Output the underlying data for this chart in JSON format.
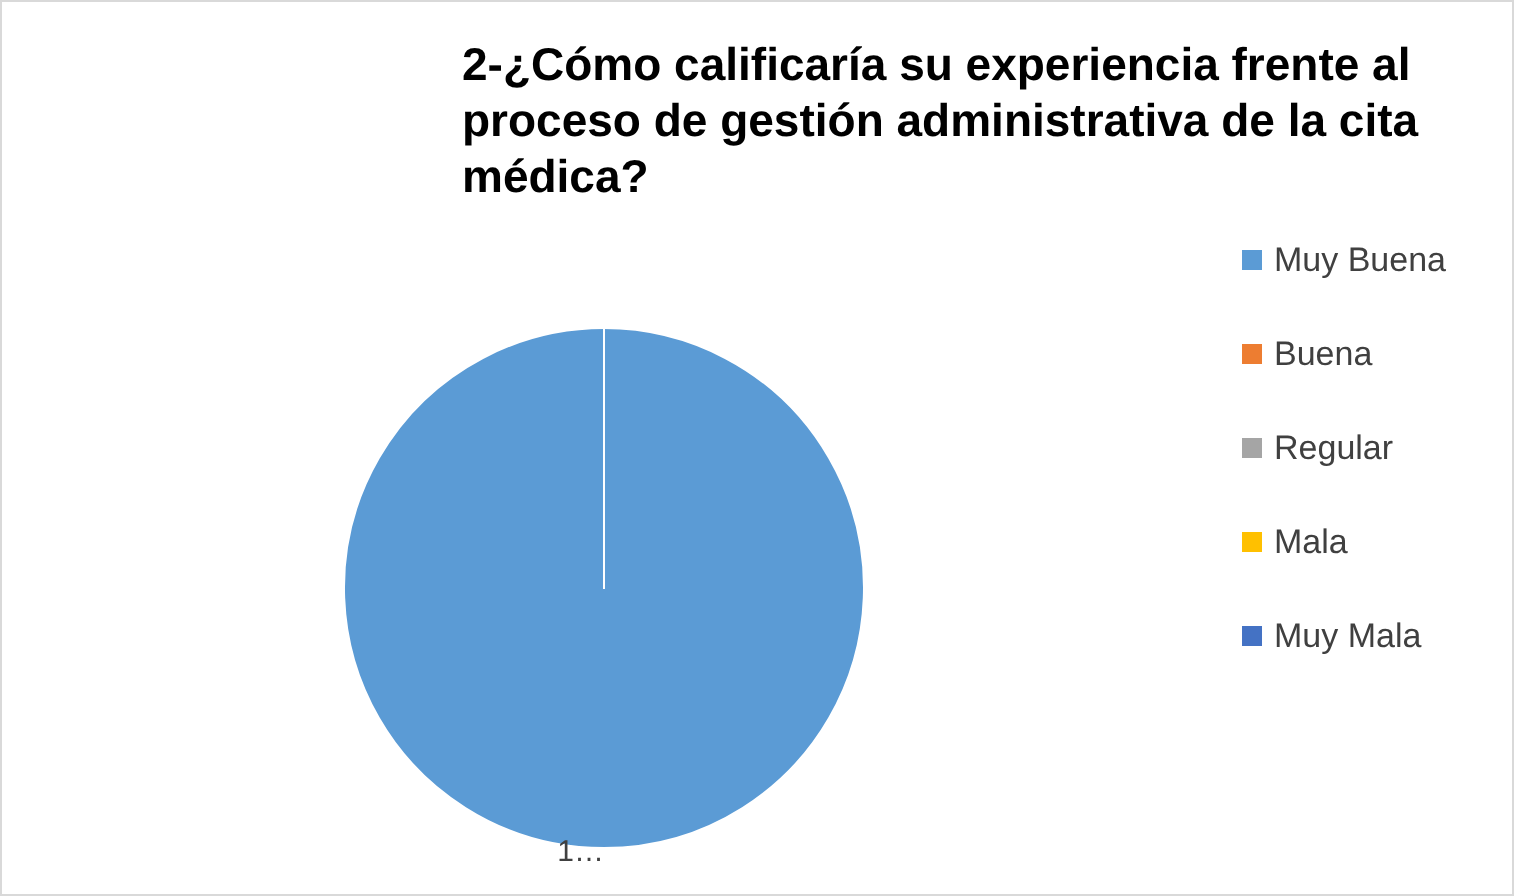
{
  "chart_data": {
    "type": "pie",
    "title": "2-¿Cómo calificaría su experiencia frente al proceso de gestión administrativa de la cita médica?",
    "categories": [
      "Muy Buena",
      "Buena",
      "Regular",
      "Mala",
      "Muy Mala"
    ],
    "values": [
      100,
      0,
      0,
      0,
      0
    ],
    "colors": [
      "#5b9bd5",
      "#ed7d31",
      "#a5a5a5",
      "#ffc000",
      "#4472c4"
    ],
    "value_labels": [
      "1…",
      null,
      null,
      null,
      null
    ],
    "legend": "right"
  }
}
